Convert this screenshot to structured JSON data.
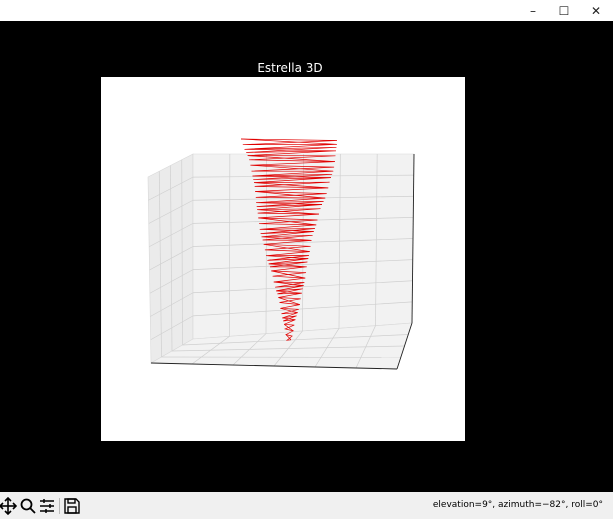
{
  "window": {
    "minimize_glyph": "–",
    "maximize_glyph": "☐",
    "close_glyph": "✕"
  },
  "figure": {
    "title": "Estrella 3D",
    "line_color": "#e00000",
    "axes_projection": "3d",
    "view": {
      "elevation_deg": 9,
      "azimuth_deg": -82,
      "roll_deg": 0
    }
  },
  "toolbar": {
    "icons": [
      "pan-icon",
      "zoom-icon",
      "configure-subplots-icon",
      "save-icon"
    ],
    "status": "elevation=9°, azimuth=−82°, roll=0°"
  }
}
